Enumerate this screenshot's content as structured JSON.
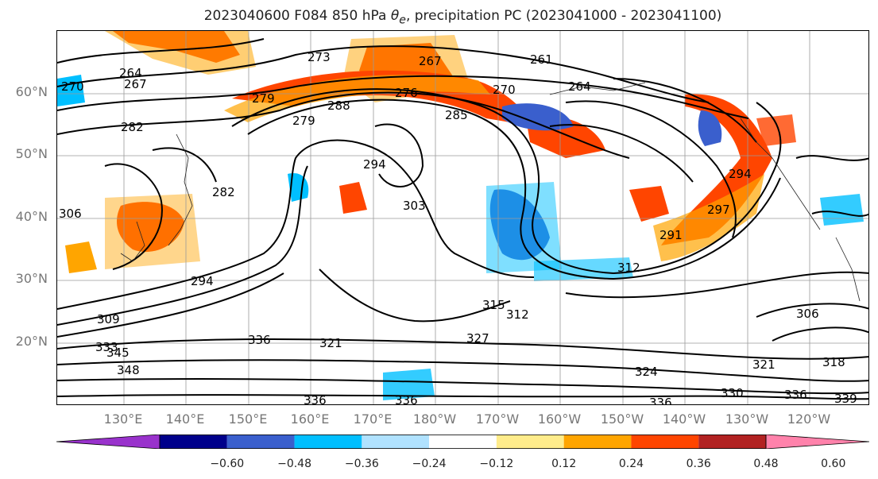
{
  "title": {
    "prefix": "2023040600 F084 850 hPa ",
    "symbol_base": "θ",
    "symbol_sub": "e",
    "suffix": ", precipitation PC (2023041000 - 2023041100)"
  },
  "lat_labels": [
    "60°N",
    "50°N",
    "40°N",
    "30°N",
    "20°N"
  ],
  "lon_labels": [
    "130°E",
    "140°E",
    "150°E",
    "160°E",
    "170°E",
    "180°W",
    "170°W",
    "160°W",
    "150°W",
    "140°W",
    "130°W",
    "120°W"
  ],
  "colorbar": {
    "ticks": [
      "−0.60",
      "−0.48",
      "−0.36",
      "−0.24",
      "−0.12",
      "0.12",
      "0.24",
      "0.36",
      "0.48",
      "0.60"
    ],
    "colors": [
      "#9932cc",
      "#00008b",
      "#3a5fcd",
      "#00bfff",
      "#b0e2ff",
      "#ffffff",
      "#ffec8b",
      "#ffa500",
      "#ff4500",
      "#b22222",
      "#ff82ab"
    ]
  },
  "contour_labels": [
    "270",
    "264",
    "267",
    "273",
    "267",
    "261",
    "270",
    "264",
    "276",
    "279",
    "288",
    "285",
    "282",
    "294",
    "303",
    "282",
    "294",
    "306",
    "309",
    "333",
    "345",
    "348",
    "336",
    "321",
    "315",
    "327",
    "312",
    "324",
    "306",
    "321",
    "318",
    "336",
    "330",
    "336",
    "339",
    "336",
    "336",
    "294",
    "297",
    "312",
    "291",
    "279"
  ],
  "map_icons": [
    "contour-lines",
    "coastline",
    "graticule"
  ]
}
